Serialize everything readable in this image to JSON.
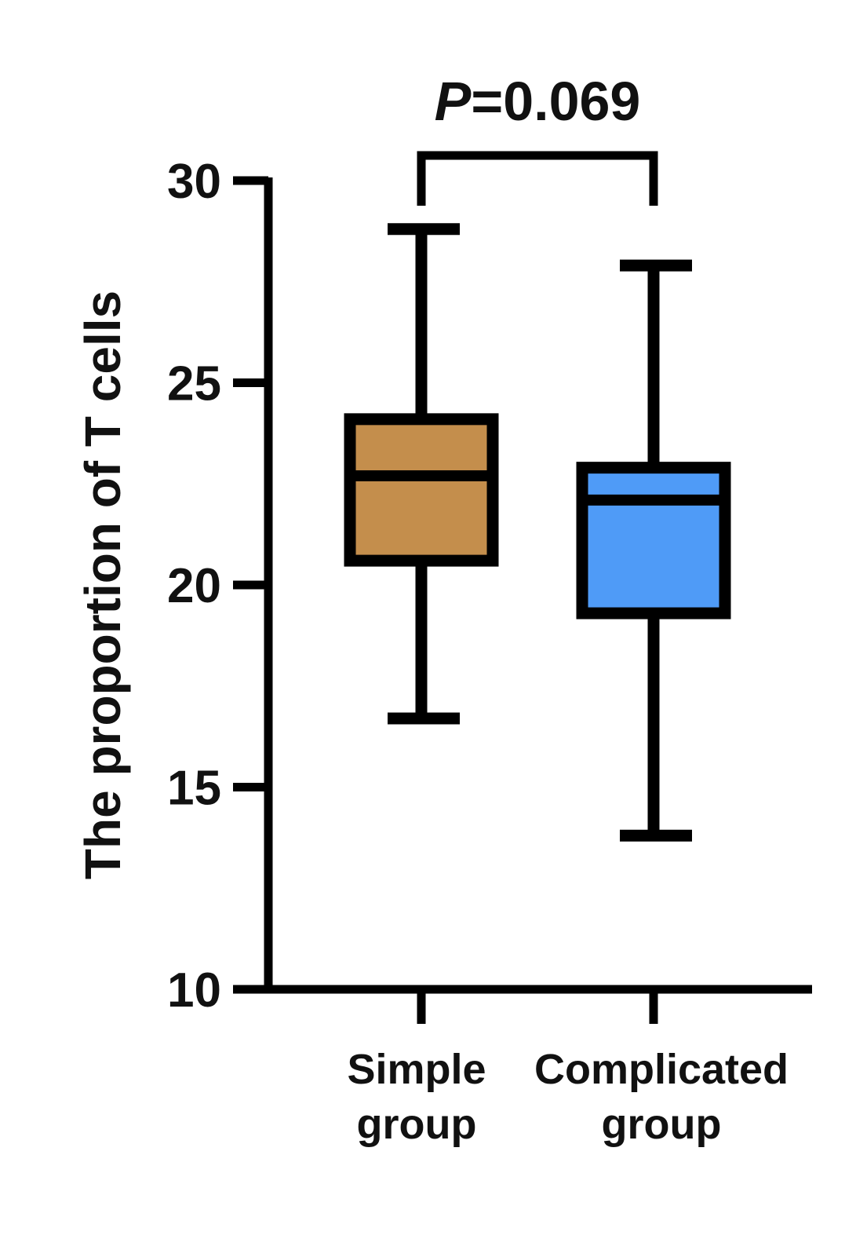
{
  "chart_data": {
    "type": "box",
    "ylabel": "The proportion of T cells",
    "ylim": [
      10,
      30
    ],
    "yticks": [
      "10",
      "15",
      "20",
      "25",
      "30"
    ],
    "categories": [
      {
        "line1": "Simple",
        "line2": "group"
      },
      {
        "line1": "Complicated",
        "line2": "group"
      }
    ],
    "boxes": [
      {
        "min": 16.7,
        "q1": 20.6,
        "median": 22.7,
        "q3": 24.1,
        "max": 28.8,
        "color": "#c48e4c"
      },
      {
        "min": 13.8,
        "q1": 19.3,
        "median": 22.1,
        "q3": 22.9,
        "max": 27.9,
        "color": "#4f9bf7"
      }
    ],
    "annotation": {
      "p_letter": "P",
      "p_value_text": "=0.069"
    }
  }
}
